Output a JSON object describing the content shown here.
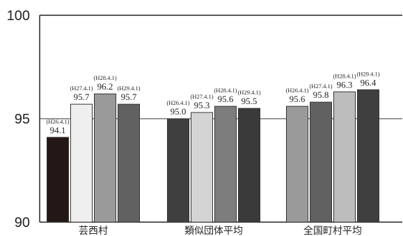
{
  "chart_data": {
    "type": "bar",
    "title": "",
    "xlabel": "",
    "ylabel": "",
    "ylim": [
      90,
      100
    ],
    "yticks": [
      90,
      95,
      100
    ],
    "grid": "y-95-line",
    "legend": "none",
    "categories": [
      "芸西村",
      "類似団体平均",
      "全国町村平均"
    ],
    "series": [
      {
        "values": [
          94.1,
          95.0,
          95.6
        ],
        "period_labels": [
          "(H26.4.1)",
          "(H26.4.1)",
          "(H26.4.1)"
        ],
        "colors": [
          "#231815",
          "#3f3f3f",
          "#9a9a9a"
        ]
      },
      {
        "values": [
          95.7,
          95.3,
          95.8
        ],
        "period_labels": [
          "(H27.4.1)",
          "(H27.4.1)",
          "(H27.4.1)"
        ],
        "colors": [
          "#efefef",
          "#d4d4d4",
          "#616161"
        ]
      },
      {
        "values": [
          96.2,
          95.6,
          96.3
        ],
        "period_labels": [
          "(H28.4.1)",
          "(H28.4.1)",
          "(H28.4.1)"
        ],
        "colors": [
          "#9a9a9a",
          "#7d7d7d",
          "#bdbdbd"
        ]
      },
      {
        "values": [
          95.7,
          95.5,
          96.4
        ],
        "period_labels": [
          "(H29.4.1)",
          "(H29.4.1)",
          "(H29.4.1)"
        ],
        "colors": [
          "#616161",
          "#3a3a3a",
          "#3f3f3f"
        ]
      }
    ]
  }
}
